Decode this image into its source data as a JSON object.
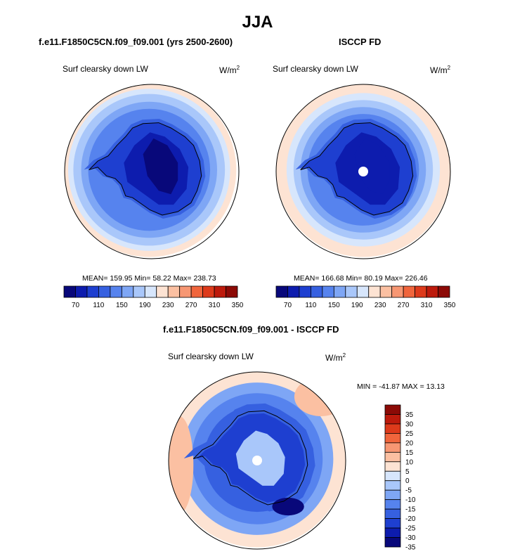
{
  "title": "JJA",
  "panels": [
    {
      "title": "f.e11.F1850C5CN.f09_f09.001 (yrs 2500-2600)",
      "variable": "Surf clearsky down LW",
      "units_base": "W/m",
      "units_exp": "2",
      "stats": "MEAN= 159.95  Min=  58.22  Max= 238.73",
      "has_pole_hole": false
    },
    {
      "title": "ISCCP FD",
      "variable": "Surf clearsky down LW",
      "units_base": "W/m",
      "units_exp": "2",
      "stats": "MEAN= 166.68  Min=  80.19  Max= 226.46",
      "has_pole_hole": true
    }
  ],
  "diff_panel": {
    "title": "f.e11.F1850C5CN.f09_f09.001 - ISCCP FD",
    "variable": "Surf clearsky down LW",
    "units_base": "W/m",
    "units_exp": "2",
    "stats": "MIN = -41.87 MAX =  13.13"
  },
  "chart_data": [
    {
      "type": "heatmap",
      "projection": "south-polar-stereographic",
      "title": "f.e11.F1850C5CN.f09_f09.001 (yrs 2500-2600)",
      "variable": "Surf clearsky down LW",
      "units": "W/m2",
      "mean": 159.95,
      "min": 58.22,
      "max": 238.73,
      "colorbar_levels": [
        70,
        90,
        110,
        130,
        150,
        170,
        190,
        210,
        230,
        250,
        270,
        290,
        310,
        330,
        350
      ],
      "colorbar_labels": [
        "70",
        "110",
        "150",
        "190",
        "230",
        "270",
        "310",
        "350"
      ],
      "colorbar_orientation": "horizontal"
    },
    {
      "type": "heatmap",
      "projection": "south-polar-stereographic",
      "title": "ISCCP FD",
      "variable": "Surf clearsky down LW",
      "units": "W/m2",
      "mean": 166.68,
      "min": 80.19,
      "max": 226.46,
      "colorbar_levels": [
        70,
        90,
        110,
        130,
        150,
        170,
        190,
        210,
        230,
        250,
        270,
        290,
        310,
        330,
        350
      ],
      "colorbar_labels": [
        "70",
        "110",
        "150",
        "190",
        "230",
        "270",
        "310",
        "350"
      ],
      "colorbar_orientation": "horizontal"
    },
    {
      "type": "heatmap",
      "projection": "south-polar-stereographic",
      "title": "f.e11.F1850C5CN.f09_f09.001 - ISCCP FD",
      "variable": "Surf clearsky down LW",
      "units": "W/m2",
      "min": -41.87,
      "max": 13.13,
      "colorbar_levels": [
        -35,
        -30,
        -25,
        -20,
        -15,
        -10,
        -5,
        0,
        5,
        10,
        15,
        20,
        25,
        30,
        35
      ],
      "colorbar_labels": [
        "35",
        "30",
        "25",
        "20",
        "15",
        "10",
        "5",
        "0",
        "-5",
        "-10",
        "-15",
        "-20",
        "-25",
        "-30",
        "-35"
      ],
      "colorbar_orientation": "vertical"
    }
  ],
  "colors": {
    "scale": [
      "#08087a",
      "#0d1cae",
      "#1e3fd0",
      "#3660e0",
      "#5683ee",
      "#7ea6f5",
      "#a9c7fa",
      "#d7e6fc",
      "#fde3d3",
      "#fbc0a2",
      "#f79773",
      "#f0653c",
      "#dd3a1b",
      "#bd1a0c",
      "#8c0a06"
    ],
    "coast": "#000000"
  }
}
